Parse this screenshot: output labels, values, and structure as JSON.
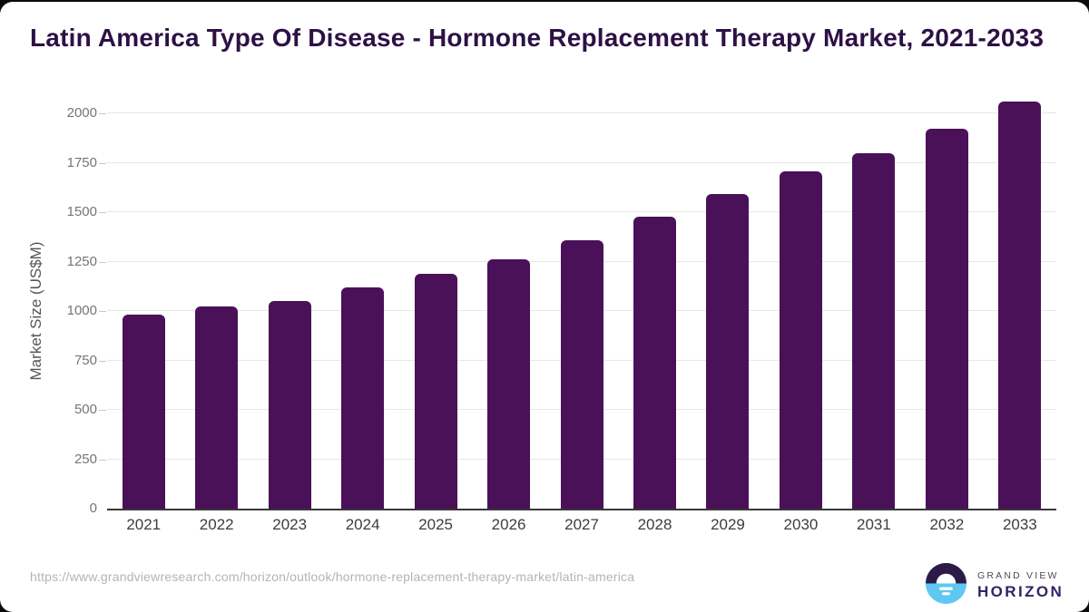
{
  "page": {
    "title": "Latin America Type Of Disease - Hormone Replacement Therapy Market, 2021-2033"
  },
  "chart_data": {
    "type": "bar",
    "title": "Latin America Type Of Disease - Hormone Replacement Therapy Market, 2021-2033",
    "xlabel": "",
    "ylabel": "Market Size (US$M)",
    "categories": [
      "2021",
      "2022",
      "2023",
      "2024",
      "2025",
      "2026",
      "2027",
      "2028",
      "2029",
      "2030",
      "2031",
      "2032",
      "2033"
    ],
    "values": [
      980,
      1022,
      1051,
      1120,
      1190,
      1261,
      1360,
      1478,
      1593,
      1708,
      1797,
      1922,
      2060
    ],
    "ylim": [
      0,
      2000
    ],
    "yticks": [
      0,
      250,
      500,
      750,
      1000,
      1250,
      1500,
      1750,
      2000
    ],
    "grid": true,
    "legend": "none",
    "bar_color": "#4a1158"
  },
  "colors": {
    "title": "#2d1145",
    "bar": "#4a1158",
    "gridline": "#e7e7e7",
    "axis_line": "#383838",
    "y_tick_label": "#757575",
    "x_tick_label": "#3d3d3d",
    "url_text": "#b4b4b4",
    "logo_dark_purple": "#2e1a47",
    "logo_blue": "#5ec8f2"
  },
  "footer": {
    "source_url": "https://www.grandviewresearch.com/horizon/outlook/hormone-replacement-therapy-market/latin-america",
    "logo": {
      "line1": "GRAND VIEW",
      "line2": "HORIZON"
    }
  }
}
